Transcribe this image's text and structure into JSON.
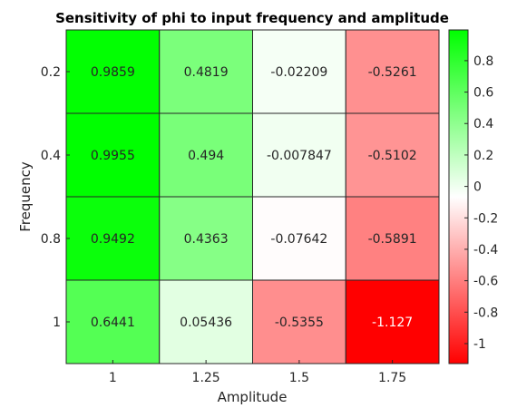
{
  "chart_data": {
    "type": "heatmap",
    "title": "Sensitivity of phi to input frequency and amplitude",
    "xlabel": "Amplitude",
    "ylabel": "Frequency",
    "x_categories": [
      "1",
      "1.25",
      "1.5",
      "1.75"
    ],
    "y_categories": [
      "0.2",
      "0.4",
      "0.8",
      "1"
    ],
    "values": [
      [
        0.9859,
        0.4819,
        -0.02209,
        -0.5261
      ],
      [
        0.9955,
        0.494,
        -0.007847,
        -0.5102
      ],
      [
        0.9492,
        0.4363,
        -0.07642,
        -0.5891
      ],
      [
        0.6441,
        0.05436,
        -0.5355,
        -1.127
      ]
    ],
    "value_labels": [
      [
        "0.9859",
        "0.4819",
        "-0.02209",
        "-0.5261"
      ],
      [
        "0.9955",
        "0.494",
        "-0.007847",
        "-0.5102"
      ],
      [
        "0.9492",
        "0.4363",
        "-0.07642",
        "-0.5891"
      ],
      [
        "0.6441",
        "0.05436",
        "-0.5355",
        "-1.127"
      ]
    ],
    "colorbar": {
      "min": -1.127,
      "max": 0.9955,
      "ticks": [
        0.8,
        0.6,
        0.4,
        0.2,
        0,
        -0.2,
        -0.4,
        -0.6,
        -0.8,
        -1
      ],
      "tick_labels": [
        "0.8",
        "0.6",
        "0.4",
        "0.2",
        "0",
        "-0.2",
        "-0.4",
        "-0.6",
        "-0.8",
        "-1"
      ],
      "colors": {
        "high": "#00ff00",
        "mid": "#ffffff",
        "low": "#ff0000"
      }
    },
    "grid": true
  }
}
